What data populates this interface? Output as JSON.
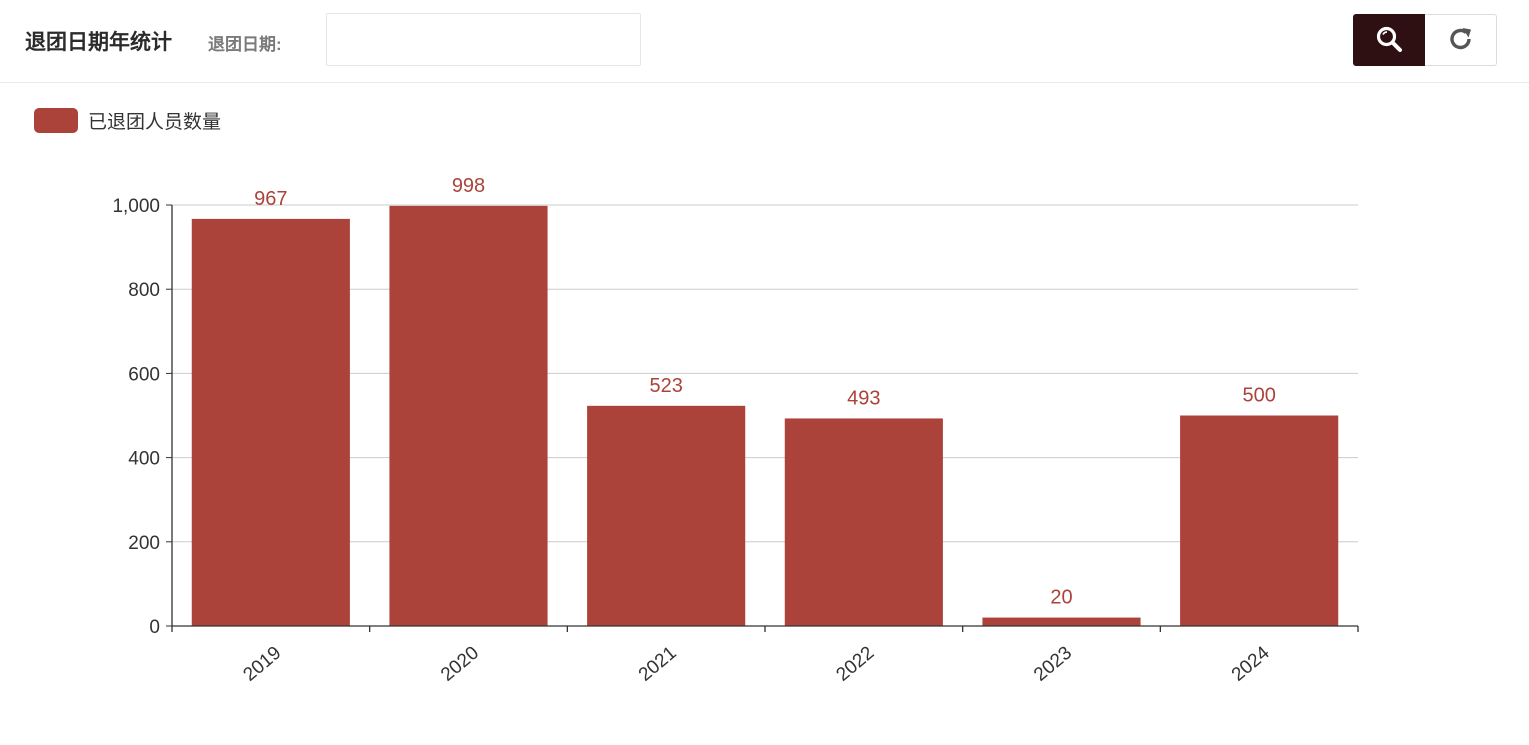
{
  "header": {
    "title": "退团日期年统计",
    "filter_label": "退团日期:",
    "date_input_value": "",
    "search_icon": "search-icon",
    "reset_icon": "refresh-icon"
  },
  "colors": {
    "bar": "#ab433a",
    "search_button_bg": "#2e0f12",
    "grid": "#cccccc",
    "axis": "#333333"
  },
  "chart_data": {
    "type": "bar",
    "categories": [
      "2019",
      "2020",
      "2021",
      "2022",
      "2023",
      "2024"
    ],
    "series": [
      {
        "name": "已退团人员数量",
        "values": [
          967,
          998,
          523,
          493,
          20,
          500
        ]
      }
    ],
    "ylim": [
      0,
      1000
    ],
    "yticks": [
      0,
      200,
      400,
      600,
      800,
      1000
    ],
    "ytick_labels": [
      "0",
      "200",
      "400",
      "600",
      "800",
      "1,000"
    ],
    "legend_position": "top-left",
    "grid": true,
    "data_labels": true
  }
}
